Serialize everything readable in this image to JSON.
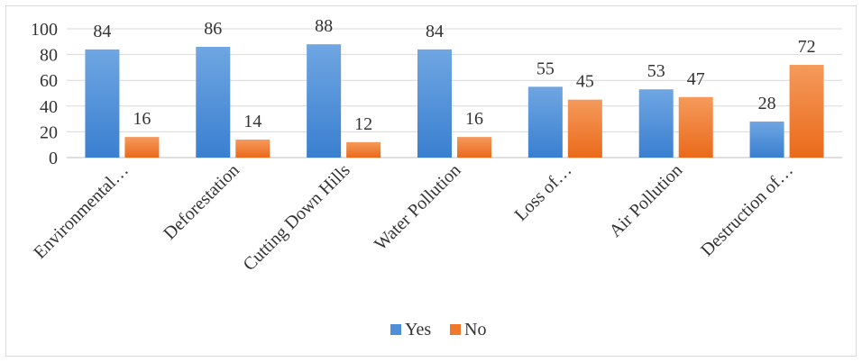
{
  "chart_data": {
    "type": "bar",
    "categories": [
      "Environmental…",
      "Deforestation",
      "Cutting Down Hills",
      "Water Pollution",
      "Loss of…",
      "Air Pollution",
      "Destruction of…"
    ],
    "series": [
      {
        "name": "Yes",
        "values": [
          84,
          86,
          88,
          84,
          55,
          53,
          28
        ],
        "color": "#4f8fd6"
      },
      {
        "name": "No",
        "values": [
          16,
          14,
          12,
          16,
          45,
          47,
          72
        ],
        "color": "#f0782c"
      }
    ],
    "title": "",
    "xlabel": "",
    "ylabel": "",
    "ylim": [
      0,
      100
    ],
    "yticks": [
      0,
      20,
      40,
      60,
      80,
      100
    ],
    "grid": true,
    "legend": "bottom",
    "data_labels": true
  }
}
